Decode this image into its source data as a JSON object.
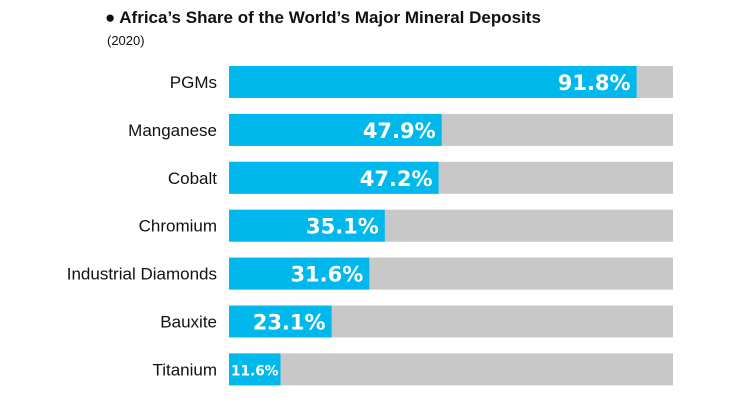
{
  "header": {
    "bullet": "●",
    "title": "Africa’s Share of the World’s Major Mineral Deposits",
    "subtitle": "(2020)"
  },
  "colors": {
    "bar": "#00b8ec",
    "track": "#c8c8c8",
    "value_text": "#ffffff",
    "label_text": "#111111"
  },
  "chart_data": {
    "type": "bar",
    "orientation": "horizontal",
    "title": "Africa’s Share of the World’s Major Mineral Deposits",
    "subtitle": "(2020)",
    "xlabel": "",
    "ylabel": "",
    "xlim": [
      0,
      100
    ],
    "grid": false,
    "legend": "none",
    "categories": [
      "PGMs",
      "Manganese",
      "Cobalt",
      "Chromium",
      "Industrial Diamonds",
      "Bauxite",
      "Titanium"
    ],
    "values": [
      91.8,
      47.9,
      47.2,
      35.1,
      31.6,
      23.1,
      11.6
    ],
    "value_labels": [
      "91.8%",
      "47.9%",
      "47.2%",
      "35.1%",
      "31.6%",
      "23.1%",
      "11.6%"
    ]
  }
}
